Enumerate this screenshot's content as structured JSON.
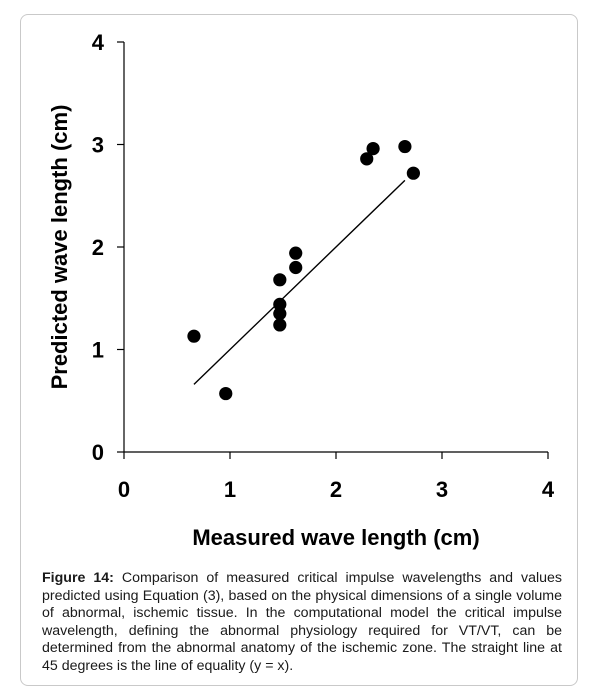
{
  "chart_data": {
    "type": "scatter",
    "xlabel": "Measured wave length (cm)",
    "ylabel": "Predicted wave length (cm)",
    "xlim": [
      0,
      4
    ],
    "ylim": [
      0,
      4
    ],
    "x_ticks": [
      "0",
      "1",
      "2",
      "3",
      "4"
    ],
    "y_ticks": [
      "0",
      "1",
      "2",
      "3",
      "4"
    ],
    "grid": false,
    "points": [
      {
        "x": 0.66,
        "y": 1.13
      },
      {
        "x": 0.96,
        "y": 0.57
      },
      {
        "x": 1.47,
        "y": 1.24
      },
      {
        "x": 1.47,
        "y": 1.35
      },
      {
        "x": 1.47,
        "y": 1.44
      },
      {
        "x": 1.47,
        "y": 1.68
      },
      {
        "x": 1.62,
        "y": 1.8
      },
      {
        "x": 1.62,
        "y": 1.94
      },
      {
        "x": 2.29,
        "y": 2.86
      },
      {
        "x": 2.35,
        "y": 2.96
      },
      {
        "x": 2.65,
        "y": 2.98
      },
      {
        "x": 2.73,
        "y": 2.72
      }
    ],
    "line": {
      "x": [
        0.66,
        2.65
      ],
      "y": [
        0.66,
        2.65
      ]
    }
  },
  "caption": {
    "label": "Figure 14:",
    "text": "Comparison of measured critical impulse wavelengths and values predicted using Equation (3), based on the physical dimensions of a single volume of abnormal, ischemic tissue. In the computational model the critical impulse wavelength, defining the abnormal physiology required for VT/VT, can be determined from the abnormal anatomy of the ischemic zone. The straight line at 45 degrees is the line of equality (y = x)."
  }
}
